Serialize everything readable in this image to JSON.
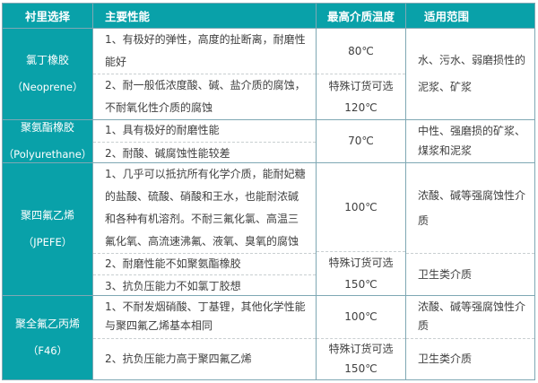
{
  "header": {
    "lining": "衬里选择",
    "performance": "主要性能",
    "max_temp": "最高介质温度",
    "scope": "适用范围"
  },
  "groups": [
    {
      "name": "氯丁橡胶",
      "name_en": "（Neoprene）",
      "perf": [
        "1、有极好的弹性，高度的扯断离，耐磨性能好",
        "2、耐一般低浓度酸、碱、盐介质的腐蚀，不耐氧化性介质的腐蚀"
      ],
      "temps": [
        {
          "line1": "80℃"
        },
        {
          "line1": "特殊订货可选",
          "line2": "120℃"
        }
      ],
      "scopes": [
        "水、污水、弱磨损性的泥浆、矿浆"
      ]
    },
    {
      "name": "聚氨酯橡胶",
      "name_en": "（Polyurethane）",
      "perf": [
        "1、具有极好的耐磨性能",
        "2、耐酸、碱腐蚀性能较差"
      ],
      "temps": [
        {
          "line1": "70℃"
        }
      ],
      "scopes": [
        "中性、强磨损的矿浆、煤浆和泥浆"
      ]
    },
    {
      "name": "聚四氟乙烯",
      "name_en": "（JPEFE）",
      "perf": [
        "1、几乎可以抵抗所有化学介质，能耐妃糖的盐酸、硫酸、硝酸和王水，也能耐浓碱和各种有机溶剂。不耐三氟化氯、高温三氟化氧、高流速沸氟、液氧、臭氧的腐蚀",
        "2、耐磨性能不如聚氨酯橡胶",
        "3、抗负压能力不如氯丁胶想"
      ],
      "temps": [
        {
          "line1": "100℃"
        },
        {
          "line1": "特殊订货可选",
          "line2": "150℃"
        }
      ],
      "scopes": [
        "浓酸、碱等强腐蚀性介质",
        "卫生类介质"
      ]
    },
    {
      "name": "聚全氟乙丙烯",
      "name_en": "（F46）",
      "perf": [
        "1、不耐发烟硝酸、丁基锂，其他化学性能与聚四氟乙烯基本相同",
        "2、抗负压能力高于聚四氟乙烯"
      ],
      "temps": [
        {
          "line1": "100℃"
        },
        {
          "line1": "特殊订货可选",
          "line2": "150℃"
        }
      ],
      "scopes": [
        "浓酸、碱等强腐蚀性介质",
        "卫生类介质"
      ]
    }
  ],
  "colors": {
    "teal": "#09a1a9",
    "grid_border": "#7fa8b4",
    "dashed_divider": "#c9cfd1",
    "body_text": "#3f3f3f",
    "header_text": "#ffffff"
  }
}
